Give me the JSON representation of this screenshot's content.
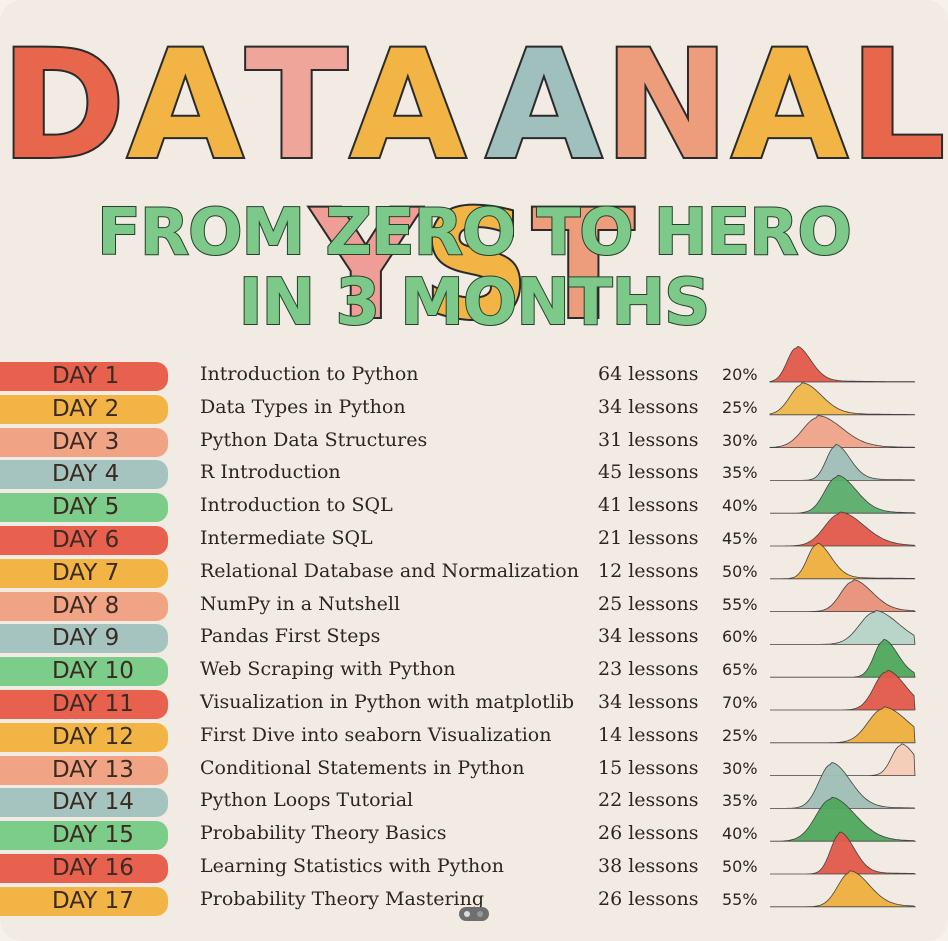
{
  "title": {
    "letters": [
      "D",
      "A",
      "T",
      "A",
      " ",
      "A",
      "N",
      "A",
      "L",
      "Y",
      "S",
      "T"
    ],
    "colors": [
      "#e8674c",
      "#f2b545",
      "#efa59a",
      "#f2b545",
      "#ffffff",
      "#9fc0bd",
      "#ee9d7c",
      "#f2b545",
      "#e8674c",
      "#f09c97",
      "#f2b545",
      "#ee9d7c"
    ]
  },
  "subtitle": {
    "line1": "FROM ZERO TO HERO",
    "line2": "IN 3 MONTHS"
  },
  "rows": [
    {
      "day": "DAY 1",
      "topic": "Introduction to Python",
      "lessons": "64 lessons",
      "pct": "20%",
      "color": "#e8614f",
      "peak": 0.2
    },
    {
      "day": "DAY 2",
      "topic": "Data Types in Python",
      "lessons": "34 lessons",
      "pct": "25%",
      "color": "#f2b545",
      "peak": 0.25
    },
    {
      "day": "DAY 3",
      "topic": "Python Data Structures",
      "lessons": "31 lessons",
      "pct": "30%",
      "color": "#f1a485",
      "peak": 0.3
    },
    {
      "day": "DAY 4",
      "topic": "R Introduction",
      "lessons": "45 lessons",
      "pct": "35%",
      "color": "#a5c4c0",
      "peak": 0.35
    },
    {
      "day": "DAY 5",
      "topic": "Introduction to SQL",
      "lessons": "41 lessons",
      "pct": "40%",
      "color": "#7ccc8a",
      "peak": 0.4
    },
    {
      "day": "DAY 6",
      "topic": "Intermediate SQL",
      "lessons": "21 lessons",
      "pct": "45%",
      "color": "#e8614f",
      "peak": 0.45
    },
    {
      "day": "DAY 7",
      "topic": "Relational Database and Normalization",
      "lessons": "12 lessons",
      "pct": "50%",
      "color": "#f2b545",
      "peak": 0.5
    },
    {
      "day": "DAY 8",
      "topic": "NumPy in a Nutshell",
      "lessons": "25 lessons",
      "pct": "55%",
      "color": "#f1a485",
      "peak": 0.55
    },
    {
      "day": "DAY 9",
      "topic": "Pandas First Steps",
      "lessons": "34 lessons",
      "pct": "60%",
      "color": "#a5c4c0",
      "peak": 0.6
    },
    {
      "day": "DAY 10",
      "topic": "Web Scraping with Python",
      "lessons": "23 lessons",
      "pct": "65%",
      "color": "#7ccc8a",
      "peak": 0.65
    },
    {
      "day": "DAY 11",
      "topic": "Visualization in Python with matplotlib",
      "lessons": "34 lessons",
      "pct": "70%",
      "color": "#e8614f",
      "peak": 0.7
    },
    {
      "day": "DAY 12",
      "topic": "First Dive into seaborn Visualization",
      "lessons": "14 lessons",
      "pct": "25%",
      "color": "#f2b545",
      "peak": 0.25
    },
    {
      "day": "DAY 13",
      "topic": "Conditional Statements in Python",
      "lessons": "15 lessons",
      "pct": "30%",
      "color": "#f1a485",
      "peak": 0.3
    },
    {
      "day": "DAY 14",
      "topic": "Python Loops Tutorial",
      "lessons": "22 lessons",
      "pct": "35%",
      "color": "#a5c4c0",
      "peak": 0.35
    },
    {
      "day": "DAY 15",
      "topic": "Probability Theory Basics",
      "lessons": "26 lessons",
      "pct": "40%",
      "color": "#7ccc8a",
      "peak": 0.4
    },
    {
      "day": "DAY 16",
      "topic": "Learning Statistics with Python",
      "lessons": "38 lessons",
      "pct": "50%",
      "color": "#e8614f",
      "peak": 0.5
    },
    {
      "day": "DAY 17",
      "topic": "Probability Theory Mastering",
      "lessons": "26 lessons",
      "pct": "55%",
      "color": "#f2b545",
      "peak": 0.55
    }
  ],
  "ridge_colors": [
    "#e35a4c",
    "#f0b84c",
    "#efa48a",
    "#9fbfb7",
    "#5cae6c",
    "#e35a4c",
    "#eeb03f",
    "#e8927a",
    "#b7d4c8",
    "#4fa85c",
    "#e35a4c",
    "#eeb03f",
    "#f6cdb8",
    "#9fbfb7",
    "#4fa85c",
    "#e35a4c",
    "#eeb03f"
  ],
  "ridge_peaks": [
    0.18,
    0.22,
    0.33,
    0.45,
    0.46,
    0.48,
    0.32,
    0.57,
    0.72,
    0.78,
    0.8,
    0.78,
    0.9,
    0.42,
    0.42,
    0.48,
    0.55
  ]
}
